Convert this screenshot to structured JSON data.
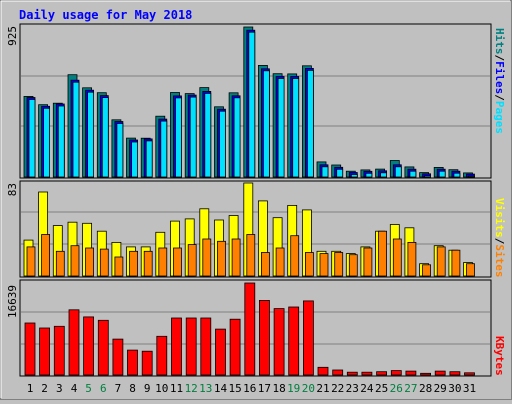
{
  "title": "Daily usage for May 2018",
  "colors": {
    "background": "#c0c0c0",
    "title": "#0000ff",
    "hits": "#008080",
    "files": "#0000ff",
    "pages": "#00e0ff",
    "visits": "#ffff00",
    "sites": "#ff8000",
    "kbytes": "#ff0000",
    "weekend_label": "#008040",
    "weekday_label": "#000000"
  },
  "legend": {
    "top": [
      {
        "text": "Hits",
        "color_key": "hits"
      },
      {
        "text": "/",
        "color_key": "weekday_label"
      },
      {
        "text": "Files",
        "color_key": "files"
      },
      {
        "text": "/",
        "color_key": "weekday_label"
      },
      {
        "text": "Pages",
        "color_key": "pages"
      }
    ],
    "middle": [
      {
        "text": "Visits",
        "color_key": "visits"
      },
      {
        "text": "/",
        "color_key": "weekday_label"
      },
      {
        "text": "Sites",
        "color_key": "sites"
      }
    ],
    "bottom": [
      {
        "text": "KBytes",
        "color_key": "kbytes"
      }
    ]
  },
  "chart_data": [
    {
      "type": "bar",
      "panel": "hits-files-pages",
      "max_label": "925",
      "ylim": [
        0,
        925
      ],
      "categories": [
        "1",
        "2",
        "3",
        "4",
        "5",
        "6",
        "7",
        "8",
        "9",
        "10",
        "11",
        "12",
        "13",
        "14",
        "15",
        "16",
        "17",
        "18",
        "19",
        "20",
        "21",
        "22",
        "23",
        "24",
        "25",
        "26",
        "27",
        "28",
        "29",
        "30",
        "31"
      ],
      "weekend_days": [
        "5",
        "6",
        "12",
        "13",
        "19",
        "20",
        "26",
        "27"
      ],
      "series": [
        {
          "name": "Hits",
          "values": [
            497,
            446,
            455,
            631,
            550,
            520,
            353,
            240,
            239,
            375,
            521,
            514,
            551,
            433,
            519,
            925,
            688,
            637,
            636,
            686,
            93,
            74,
            36,
            44,
            49,
            102,
            62,
            27,
            59,
            45,
            25
          ]
        },
        {
          "name": "Files",
          "values": [
            490,
            436,
            450,
            597,
            535,
            502,
            342,
            228,
            235,
            357,
            500,
            505,
            528,
            418,
            501,
            905,
            667,
            620,
            620,
            670,
            75,
            60,
            28,
            35,
            38,
            75,
            48,
            20,
            48,
            36,
            18
          ]
        },
        {
          "name": "Pages",
          "values": [
            490,
            436,
            450,
            597,
            535,
            502,
            342,
            228,
            235,
            357,
            500,
            505,
            528,
            418,
            501,
            905,
            667,
            620,
            620,
            670,
            75,
            60,
            28,
            35,
            38,
            75,
            48,
            20,
            48,
            36,
            18
          ]
        }
      ]
    },
    {
      "type": "bar",
      "panel": "visits-sites",
      "max_label": "83",
      "ylim": [
        0,
        83
      ],
      "categories": [
        "1",
        "2",
        "3",
        "4",
        "5",
        "6",
        "7",
        "8",
        "9",
        "10",
        "11",
        "12",
        "13",
        "14",
        "15",
        "16",
        "17",
        "18",
        "19",
        "20",
        "21",
        "22",
        "23",
        "24",
        "25",
        "26",
        "27",
        "28",
        "29",
        "30",
        "31"
      ],
      "weekend_days": [
        "5",
        "6",
        "12",
        "13",
        "19",
        "20",
        "26",
        "27"
      ],
      "series": [
        {
          "name": "Visits",
          "values": [
            32,
            75,
            45,
            48,
            47,
            40,
            30,
            26,
            26,
            39,
            49,
            51,
            60,
            50,
            54,
            83,
            67,
            52,
            63,
            59,
            22,
            22,
            20,
            26,
            40,
            46,
            43,
            11,
            27,
            23,
            12
          ]
        },
        {
          "name": "Sites",
          "values": [
            26,
            37,
            22,
            27,
            25,
            24,
            17,
            22,
            22,
            25,
            25,
            28,
            33,
            31,
            33,
            37,
            21,
            25,
            36,
            21,
            20,
            21,
            19,
            25,
            40,
            33,
            30,
            10,
            26,
            23,
            11
          ]
        }
      ]
    },
    {
      "type": "bar",
      "panel": "kbytes",
      "max_label": "16639",
      "ylim": [
        0,
        16639
      ],
      "categories": [
        "1",
        "2",
        "3",
        "4",
        "5",
        "6",
        "7",
        "8",
        "9",
        "10",
        "11",
        "12",
        "13",
        "14",
        "15",
        "16",
        "17",
        "18",
        "19",
        "20",
        "21",
        "22",
        "23",
        "24",
        "25",
        "26",
        "27",
        "28",
        "29",
        "30",
        "31"
      ],
      "weekend_days": [
        "5",
        "6",
        "12",
        "13",
        "19",
        "20",
        "26",
        "27"
      ],
      "series": [
        {
          "name": "KBytes",
          "values": [
            9400,
            8500,
            8800,
            11800,
            10500,
            9900,
            6500,
            4500,
            4300,
            7000,
            10300,
            10300,
            10300,
            8300,
            10100,
            16639,
            13500,
            12000,
            12300,
            13400,
            1400,
            900,
            500,
            500,
            600,
            800,
            700,
            300,
            700,
            600,
            400
          ]
        }
      ]
    }
  ]
}
